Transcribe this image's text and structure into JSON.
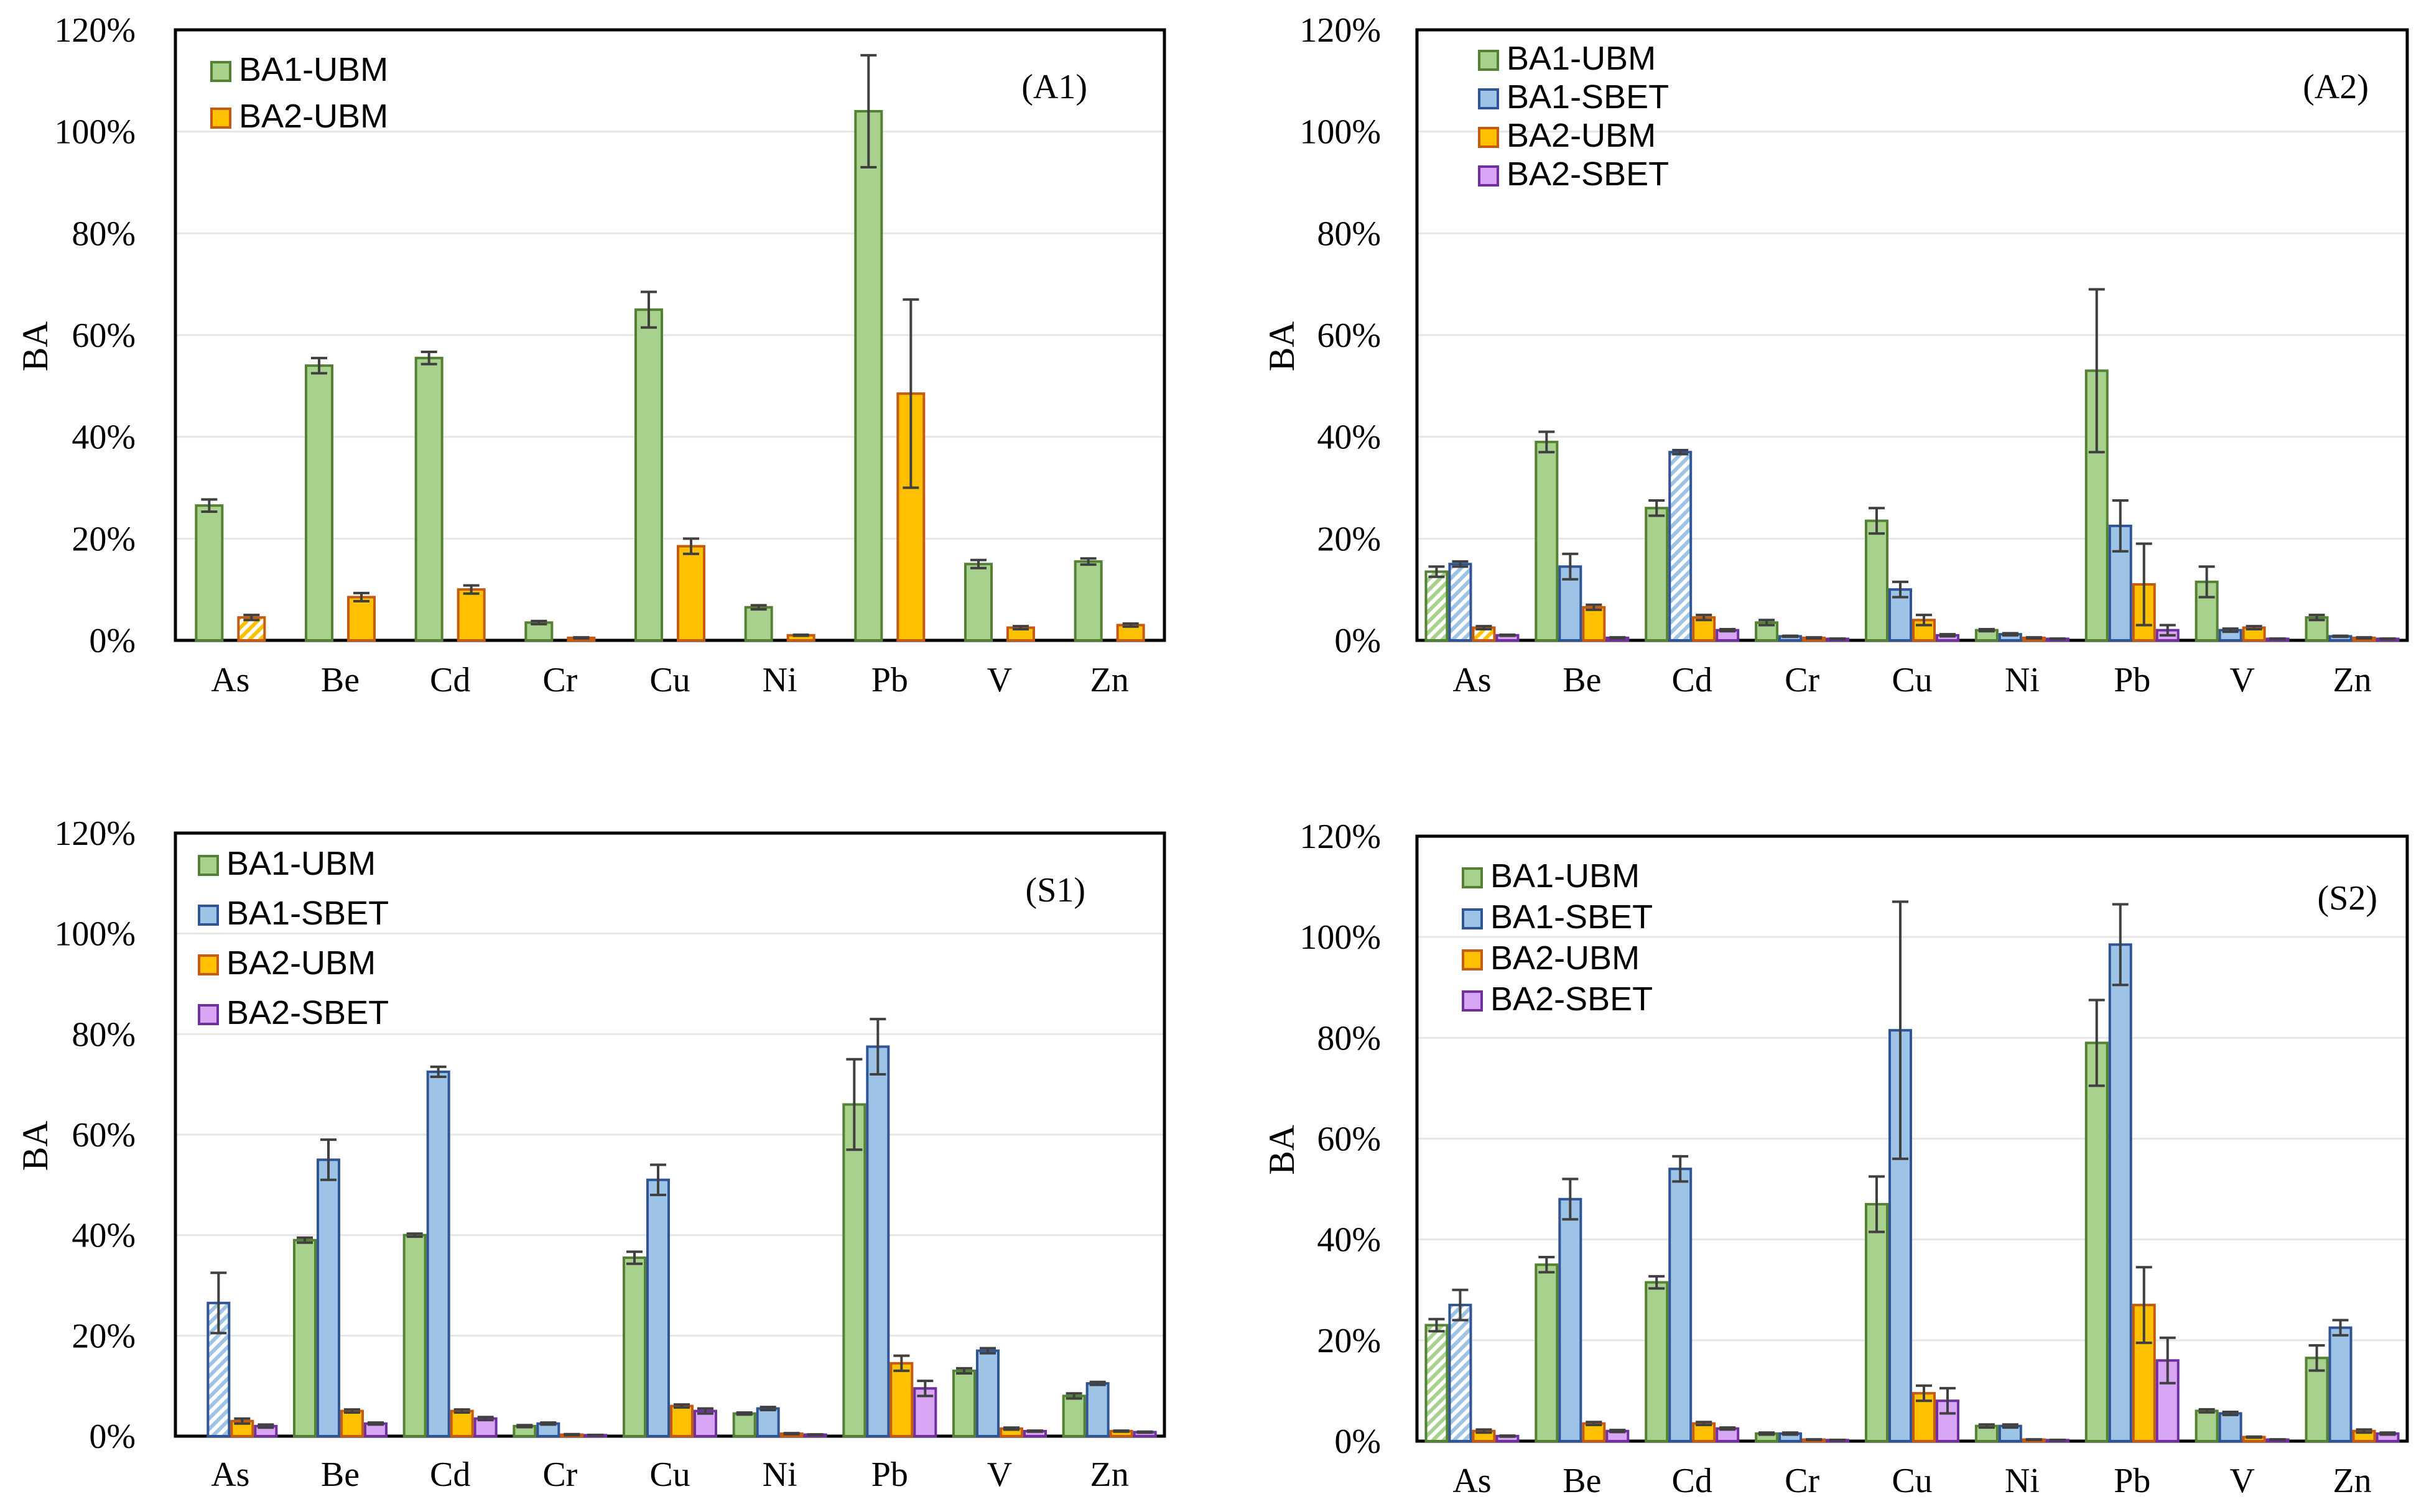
{
  "colors": {
    "BA1-UBM": {
      "fill": "#a9d18e",
      "stroke": "#548235"
    },
    "BA1-SBET": {
      "fill": "#9dc3e6",
      "stroke": "#2f5597"
    },
    "BA2-UBM": {
      "fill": "#ffc000",
      "stroke": "#c55a11"
    },
    "BA2-SBET": {
      "fill": "#d9a6f5",
      "stroke": "#7030a0"
    }
  },
  "chart_data": [
    {
      "id": "A1",
      "type": "bar",
      "title": "(A1)",
      "ylabel": "BA",
      "xlabel": "",
      "ylim": [
        0,
        120
      ],
      "yticks": [
        "0%",
        "20%",
        "40%",
        "60%",
        "80%",
        "100%",
        "120%"
      ],
      "legend": "top-left",
      "categories": [
        "As",
        "Be",
        "Cd",
        "Cr",
        "Cu",
        "Ni",
        "Pb",
        "V",
        "Zn"
      ],
      "series": [
        {
          "name": "BA1-UBM",
          "values": [
            26.5,
            54,
            55.5,
            3.5,
            65,
            6.5,
            104,
            15,
            15.5
          ],
          "errors": [
            1.2,
            1.5,
            1.2,
            0.3,
            3.5,
            0.4,
            11,
            0.8,
            0.6
          ],
          "hatched": []
        },
        {
          "name": "BA2-UBM",
          "values": [
            4.5,
            8.5,
            10,
            0.5,
            18.5,
            1,
            48.5,
            2.5,
            3
          ],
          "errors": [
            0.5,
            0.8,
            0.8,
            0.1,
            1.5,
            0.1,
            18.5,
            0.3,
            0.3
          ],
          "hatched": [
            0
          ]
        }
      ]
    },
    {
      "id": "A2",
      "type": "bar",
      "title": "(A2)",
      "ylabel": "BA",
      "xlabel": "",
      "ylim": [
        0,
        120
      ],
      "yticks": [
        "0%",
        "20%",
        "40%",
        "60%",
        "80%",
        "100%",
        "120%"
      ],
      "legend": "top-left",
      "categories": [
        "As",
        "Be",
        "Cd",
        "Cr",
        "Cu",
        "Ni",
        "Pb",
        "V",
        "Zn"
      ],
      "series": [
        {
          "name": "BA1-UBM",
          "values": [
            13.5,
            39,
            26,
            3.5,
            23.5,
            2,
            53,
            11.5,
            4.5
          ],
          "errors": [
            1,
            2,
            1.5,
            0.5,
            2.5,
            0.2,
            16,
            3,
            0.5
          ],
          "hatched": [
            0
          ]
        },
        {
          "name": "BA1-SBET",
          "values": [
            15,
            14.5,
            37,
            0.8,
            10,
            1.2,
            22.5,
            2,
            0.8
          ],
          "errors": [
            0.5,
            2.5,
            0.4,
            0.1,
            1.5,
            0.2,
            5,
            0.3,
            0.1
          ],
          "hatched": [
            0,
            2
          ]
        },
        {
          "name": "BA2-UBM",
          "values": [
            2.5,
            6.5,
            4.5,
            0.5,
            4,
            0.5,
            11,
            2.5,
            0.5
          ],
          "errors": [
            0.3,
            0.5,
            0.5,
            0.1,
            1,
            0.1,
            8,
            0.3,
            0.1
          ],
          "hatched": [
            0
          ]
        },
        {
          "name": "BA2-SBET",
          "values": [
            1,
            0.5,
            2,
            0.3,
            1,
            0.3,
            2,
            0.3,
            0.3
          ],
          "errors": [
            0.1,
            0.1,
            0.2,
            0.05,
            0.2,
            0.05,
            1,
            0.05,
            0.05
          ],
          "hatched": []
        }
      ]
    },
    {
      "id": "S1",
      "type": "bar",
      "title": "(S1)",
      "ylabel": "BA",
      "xlabel": "",
      "ylim": [
        0,
        120
      ],
      "yticks": [
        "0%",
        "20%",
        "40%",
        "60%",
        "80%",
        "100%",
        "120%"
      ],
      "legend": "top-left",
      "categories": [
        "As",
        "Be",
        "Cd",
        "Cr",
        "Cu",
        "Ni",
        "Pb",
        "V",
        "Zn"
      ],
      "series": [
        {
          "name": "BA1-UBM",
          "values": [
            0,
            39,
            40,
            2,
            35.5,
            4.5,
            66,
            13,
            8
          ],
          "errors": [
            0,
            0.5,
            0.3,
            0.2,
            1.2,
            0.2,
            9,
            0.5,
            0.5
          ],
          "hatched": []
        },
        {
          "name": "BA1-SBET",
          "values": [
            26.5,
            55,
            72.5,
            2.5,
            51,
            5.5,
            77.5,
            17,
            10.5
          ],
          "errors": [
            6,
            4,
            1,
            0.2,
            3,
            0.3,
            5.5,
            0.5,
            0.3
          ],
          "hatched": [
            0
          ]
        },
        {
          "name": "BA2-UBM",
          "values": [
            3,
            5,
            5,
            0.3,
            6,
            0.5,
            14.5,
            1.5,
            1
          ],
          "errors": [
            0.5,
            0.3,
            0.3,
            0.1,
            0.3,
            0.1,
            1.5,
            0.2,
            0.1
          ],
          "hatched": []
        },
        {
          "name": "BA2-SBET",
          "values": [
            2,
            2.5,
            3.5,
            0.2,
            5,
            0.3,
            9.5,
            1,
            0.8
          ],
          "errors": [
            0.3,
            0.2,
            0.3,
            0.05,
            0.5,
            0.05,
            1.5,
            0.1,
            0.1
          ],
          "hatched": []
        }
      ]
    },
    {
      "id": "S2",
      "type": "bar",
      "title": "(S2)",
      "ylabel": "BA",
      "xlabel": "",
      "ylim": [
        0,
        120
      ],
      "yticks": [
        "0%",
        "20%",
        "40%",
        "60%",
        "80%",
        "100%",
        "120%"
      ],
      "legend": "top-left",
      "categories": [
        "As",
        "Be",
        "Cd",
        "Cr",
        "Cu",
        "Ni",
        "Pb",
        "V",
        "Zn"
      ],
      "series": [
        {
          "name": "BA1-UBM",
          "values": [
            23,
            35,
            31.5,
            1.5,
            47,
            3,
            79,
            6,
            16.5
          ],
          "errors": [
            1.2,
            1.5,
            1.2,
            0.2,
            5.5,
            0.3,
            8.5,
            0.3,
            2.5
          ],
          "hatched": [
            0
          ]
        },
        {
          "name": "BA1-SBET",
          "values": [
            27,
            48,
            54,
            1.5,
            81.5,
            3,
            98.5,
            5.5,
            22.5
          ],
          "errors": [
            3,
            4,
            2.5,
            0.2,
            25.5,
            0.3,
            8,
            0.3,
            1.5
          ],
          "hatched": [
            0
          ]
        },
        {
          "name": "BA2-UBM",
          "values": [
            2,
            3.5,
            3.5,
            0.3,
            9.5,
            0.3,
            27,
            0.8,
            2
          ],
          "errors": [
            0.3,
            0.3,
            0.3,
            0.05,
            1.5,
            0.05,
            7.5,
            0.1,
            0.3
          ],
          "hatched": []
        },
        {
          "name": "BA2-SBET",
          "values": [
            1,
            2,
            2.5,
            0.2,
            8,
            0.2,
            16,
            0.3,
            1.5
          ],
          "errors": [
            0.1,
            0.2,
            0.2,
            0.05,
            2.5,
            0.05,
            4.5,
            0.05,
            0.2
          ],
          "hatched": []
        }
      ]
    }
  ]
}
